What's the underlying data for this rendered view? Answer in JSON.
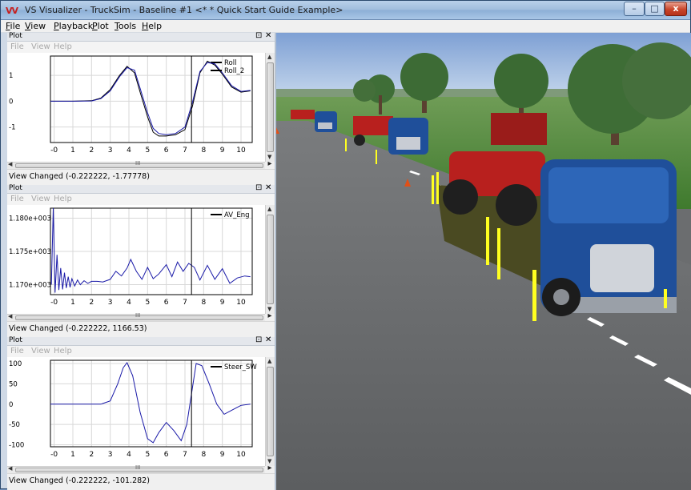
{
  "window": {
    "app_icon": "VV",
    "title": "VS Visualizer - TruckSim - Baseline #1 <* * Quick Start Guide Example>",
    "controls": {
      "minimize": "–",
      "maximize": "□",
      "close": "x"
    }
  },
  "menubar": {
    "items": [
      {
        "label": "File",
        "underline": "F",
        "rest": "ile"
      },
      {
        "label": "View",
        "underline": "V",
        "rest": "iew"
      },
      {
        "label": "Playback",
        "underline": "P",
        "rest": "layback"
      },
      {
        "label": "Plot",
        "underline": "P",
        "rest": "lot"
      },
      {
        "label": "Tools",
        "underline": "T",
        "rest": "ools"
      },
      {
        "label": "Help",
        "underline": "H",
        "rest": "elp"
      }
    ]
  },
  "plots": [
    {
      "panel_title": "Plot",
      "float_glyph": "⊡",
      "close_glyph": "✕",
      "menu": [
        "File",
        "View",
        "Help"
      ],
      "status": "View Changed (-0.222222, -1.77778)",
      "grip": "III",
      "chart_data": {
        "type": "line",
        "xlim": [
          -0.2,
          10.6
        ],
        "ylim": [
          -1.6,
          1.75
        ],
        "x_ticks": [
          "-0",
          "1",
          "2",
          "3",
          "4",
          "5",
          "6",
          "7",
          "8",
          "9",
          "10"
        ],
        "y_ticks": [
          "1",
          "0",
          "-1"
        ],
        "y_tick_values": [
          1,
          0,
          -1
        ],
        "cursor_x": 7.35,
        "series": [
          {
            "name": "Roll",
            "color": "#000000",
            "x": [
              -0.2,
              1.0,
              2.0,
              2.5,
              3.0,
              3.5,
              3.9,
              4.3,
              4.6,
              5.0,
              5.3,
              5.6,
              6.0,
              6.5,
              7.0,
              7.4,
              7.8,
              8.2,
              8.6,
              9.0,
              9.5,
              10.0,
              10.5
            ],
            "y": [
              0,
              0,
              0.02,
              0.12,
              0.45,
              1.0,
              1.35,
              1.1,
              0.35,
              -0.6,
              -1.2,
              -1.35,
              -1.35,
              -1.3,
              -1.1,
              -0.2,
              1.1,
              1.55,
              1.4,
              1.05,
              0.55,
              0.35,
              0.4
            ]
          },
          {
            "name": "Roll_2",
            "color": "#1a1aa8",
            "x": [
              -0.2,
              1.0,
              2.0,
              2.5,
              3.0,
              3.5,
              3.9,
              4.3,
              4.6,
              5.0,
              5.3,
              5.6,
              6.0,
              6.5,
              7.0,
              7.4,
              7.8,
              8.2,
              8.6,
              9.0,
              9.5,
              10.0,
              10.5
            ],
            "y": [
              0,
              0,
              0.01,
              0.1,
              0.4,
              0.95,
              1.3,
              1.2,
              0.5,
              -0.45,
              -1.05,
              -1.25,
              -1.3,
              -1.25,
              -1.0,
              -0.05,
              1.15,
              1.5,
              1.45,
              1.1,
              0.6,
              0.38,
              0.42
            ]
          }
        ]
      }
    },
    {
      "panel_title": "Plot",
      "float_glyph": "⊡",
      "close_glyph": "✕",
      "menu": [
        "File",
        "View",
        "Help"
      ],
      "status": "View Changed (-0.222222, 1166.53)",
      "grip": "III",
      "chart_data": {
        "type": "line",
        "xlim": [
          -0.2,
          10.6
        ],
        "ylim": [
          1168.5,
          1181.5
        ],
        "x_ticks": [
          "-0",
          "1",
          "2",
          "3",
          "4",
          "5",
          "6",
          "7",
          "8",
          "9",
          "10"
        ],
        "y_ticks": [
          "1.180e+003",
          "1.175e+003",
          "1.170e+003"
        ],
        "y_tick_values": [
          1180,
          1175,
          1170
        ],
        "cursor_x": 7.35,
        "series": [
          {
            "name": "AV_Eng",
            "color": "#1a1aa8",
            "x": [
              -0.15,
              -0.05,
              0.05,
              0.15,
              0.25,
              0.35,
              0.45,
              0.55,
              0.65,
              0.75,
              0.85,
              0.95,
              1.1,
              1.25,
              1.4,
              1.6,
              1.8,
              2.0,
              2.3,
              2.6,
              3.0,
              3.3,
              3.6,
              3.9,
              4.1,
              4.4,
              4.7,
              5.0,
              5.3,
              5.6,
              6.0,
              6.3,
              6.6,
              6.9,
              7.2,
              7.5,
              7.8,
              8.2,
              8.6,
              9.0,
              9.4,
              9.8,
              10.2,
              10.5
            ],
            "y": [
              1170,
              1181.5,
              1168.8,
              1174.5,
              1169.2,
              1172.5,
              1169.3,
              1171.8,
              1169.5,
              1171.2,
              1169.6,
              1170.9,
              1169.8,
              1170.7,
              1170.0,
              1170.6,
              1170.2,
              1170.5,
              1170.5,
              1170.4,
              1170.8,
              1172.0,
              1171.3,
              1172.5,
              1173.8,
              1172.0,
              1170.8,
              1172.6,
              1170.9,
              1171.6,
              1173.0,
              1171.2,
              1173.4,
              1172.0,
              1173.2,
              1172.6,
              1170.7,
              1172.9,
              1170.8,
              1172.4,
              1170.2,
              1171.0,
              1171.3,
              1171.2
            ]
          }
        ]
      }
    },
    {
      "panel_title": "Plot",
      "float_glyph": "⊡",
      "close_glyph": "✕",
      "menu": [
        "File",
        "View",
        "Help"
      ],
      "status": "View Changed (-0.222222, -101.282)",
      "grip": "III",
      "chart_data": {
        "type": "line",
        "xlim": [
          -0.2,
          10.6
        ],
        "ylim": [
          -105,
          108
        ],
        "x_ticks": [
          "-0",
          "1",
          "2",
          "3",
          "4",
          "5",
          "6",
          "7",
          "8",
          "9",
          "10"
        ],
        "y_ticks": [
          "100",
          "50",
          "0",
          "-50",
          "-100"
        ],
        "y_tick_values": [
          100,
          50,
          0,
          -50,
          -100
        ],
        "cursor_x": 7.35,
        "series": [
          {
            "name": "Steer_SW",
            "color": "#1a1aa8",
            "x": [
              -0.2,
              1.5,
              2.5,
              3.0,
              3.4,
              3.7,
              3.9,
              4.2,
              4.6,
              5.0,
              5.3,
              5.6,
              6.0,
              6.4,
              6.8,
              7.1,
              7.4,
              7.6,
              7.9,
              8.3,
              8.7,
              9.1,
              9.5,
              10.0,
              10.5
            ],
            "y": [
              0,
              0,
              0,
              8,
              50,
              90,
              102,
              70,
              -20,
              -85,
              -95,
              -70,
              -45,
              -65,
              -90,
              -50,
              40,
              100,
              95,
              50,
              0,
              -25,
              -15,
              -3,
              0
            ]
          }
        ]
      }
    }
  ],
  "scene": {
    "sky_color": "#87a8d8",
    "grass_color": "#4f8a3a",
    "road_color": "#6a6c6e",
    "truck_color": "#1f4f9a",
    "tractor_color": "#b8201e",
    "arrow_color": "#ffff20"
  }
}
